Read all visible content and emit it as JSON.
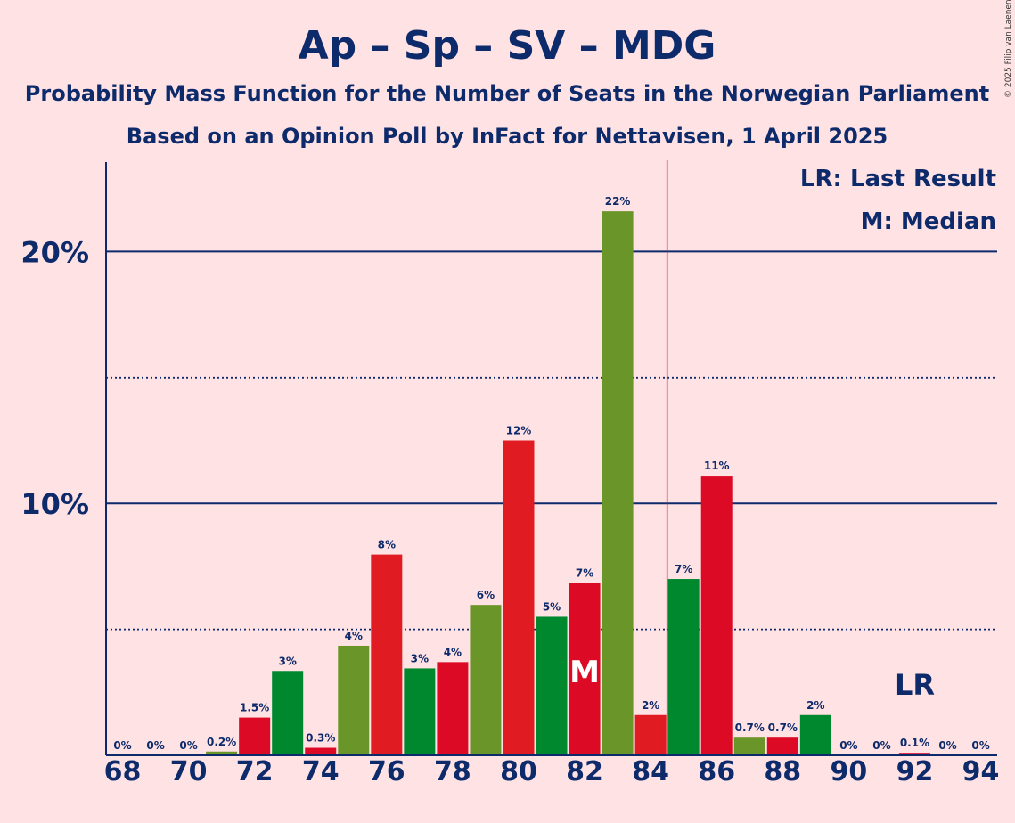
{
  "chart_data": {
    "type": "bar",
    "title": "Ap – Sp – SV – MDG",
    "subtitle1": "Probability Mass Function for the Number of Seats in the Norwegian Parliament",
    "subtitle2": "Based on an Opinion Poll by InFact for Nettavisen, 1 April 2025",
    "copyright": "© 2025 Filip van Laenen",
    "legend_lr": "LR: Last Result",
    "legend_m": "M: Median",
    "lr_marker": "LR",
    "median_marker": "M",
    "median_seat": 82,
    "last_result_seat": 92,
    "majority_line_seat": 84.5,
    "ylim": [
      0,
      23.5
    ],
    "grid": {
      "solid": [
        10,
        20
      ],
      "dotted": [
        5,
        15
      ]
    },
    "yticks": [
      {
        "value": 10,
        "label": "10%"
      },
      {
        "value": 20,
        "label": "20%"
      }
    ],
    "xticks": [
      68,
      70,
      72,
      74,
      76,
      78,
      80,
      82,
      84,
      86,
      88,
      90,
      92,
      94
    ],
    "colors": {
      "red": "#E01B22",
      "green": "#00882F",
      "olive": "#6A9528",
      "crimson": "#DC0A24",
      "axis": "#0D2A6B",
      "majority_line": "#E01B22",
      "background": "#FFE2E4"
    },
    "bars": [
      {
        "seat": 68,
        "value": 0,
        "label": "0%",
        "color": "#E01B22"
      },
      {
        "seat": 69,
        "value": 0,
        "label": "0%",
        "color": "#00882F"
      },
      {
        "seat": 70,
        "value": 0,
        "label": "0%",
        "color": "#6A9528"
      },
      {
        "seat": 71,
        "value": 0.15,
        "label": "0.2%",
        "color": "#6A9528"
      },
      {
        "seat": 72,
        "value": 1.5,
        "label": "1.5%",
        "color": "#DC0A24"
      },
      {
        "seat": 73,
        "value": 3.35,
        "label": "3%",
        "color": "#00882F"
      },
      {
        "seat": 74,
        "value": 0.3,
        "label": "0.3%",
        "color": "#DC0A24"
      },
      {
        "seat": 75,
        "value": 4.35,
        "label": "4%",
        "color": "#6A9528"
      },
      {
        "seat": 76,
        "value": 7.97,
        "label": "8%",
        "color": "#E01B22"
      },
      {
        "seat": 77,
        "value": 3.45,
        "label": "3%",
        "color": "#00882F"
      },
      {
        "seat": 78,
        "value": 3.7,
        "label": "4%",
        "color": "#DC0A24"
      },
      {
        "seat": 79,
        "value": 5.97,
        "label": "6%",
        "color": "#6A9528"
      },
      {
        "seat": 80,
        "value": 12.5,
        "label": "12%",
        "color": "#E01B22"
      },
      {
        "seat": 81,
        "value": 5.5,
        "label": "5%",
        "color": "#00882F"
      },
      {
        "seat": 82,
        "value": 6.85,
        "label": "7%",
        "color": "#DC0A24"
      },
      {
        "seat": 83,
        "value": 21.6,
        "label": "22%",
        "color": "#6A9528"
      },
      {
        "seat": 84,
        "value": 1.6,
        "label": "2%",
        "color": "#E01B22"
      },
      {
        "seat": 85,
        "value": 7.0,
        "label": "7%",
        "color": "#00882F"
      },
      {
        "seat": 86,
        "value": 11.1,
        "label": "11%",
        "color": "#DC0A24"
      },
      {
        "seat": 87,
        "value": 0.7,
        "label": "0.7%",
        "color": "#6A9528"
      },
      {
        "seat": 88,
        "value": 0.7,
        "label": "0.7%",
        "color": "#DC0A24"
      },
      {
        "seat": 89,
        "value": 1.6,
        "label": "2%",
        "color": "#00882F"
      },
      {
        "seat": 90,
        "value": 0,
        "label": "0%",
        "color": "#E01B22"
      },
      {
        "seat": 91,
        "value": 0,
        "label": "0%",
        "color": "#00882F"
      },
      {
        "seat": 92,
        "value": 0.1,
        "label": "0.1%",
        "color": "#DC0A24"
      },
      {
        "seat": 93,
        "value": 0,
        "label": "0%",
        "color": "#6A9528"
      },
      {
        "seat": 94,
        "value": 0,
        "label": "0%",
        "color": "#E01B22"
      }
    ]
  }
}
